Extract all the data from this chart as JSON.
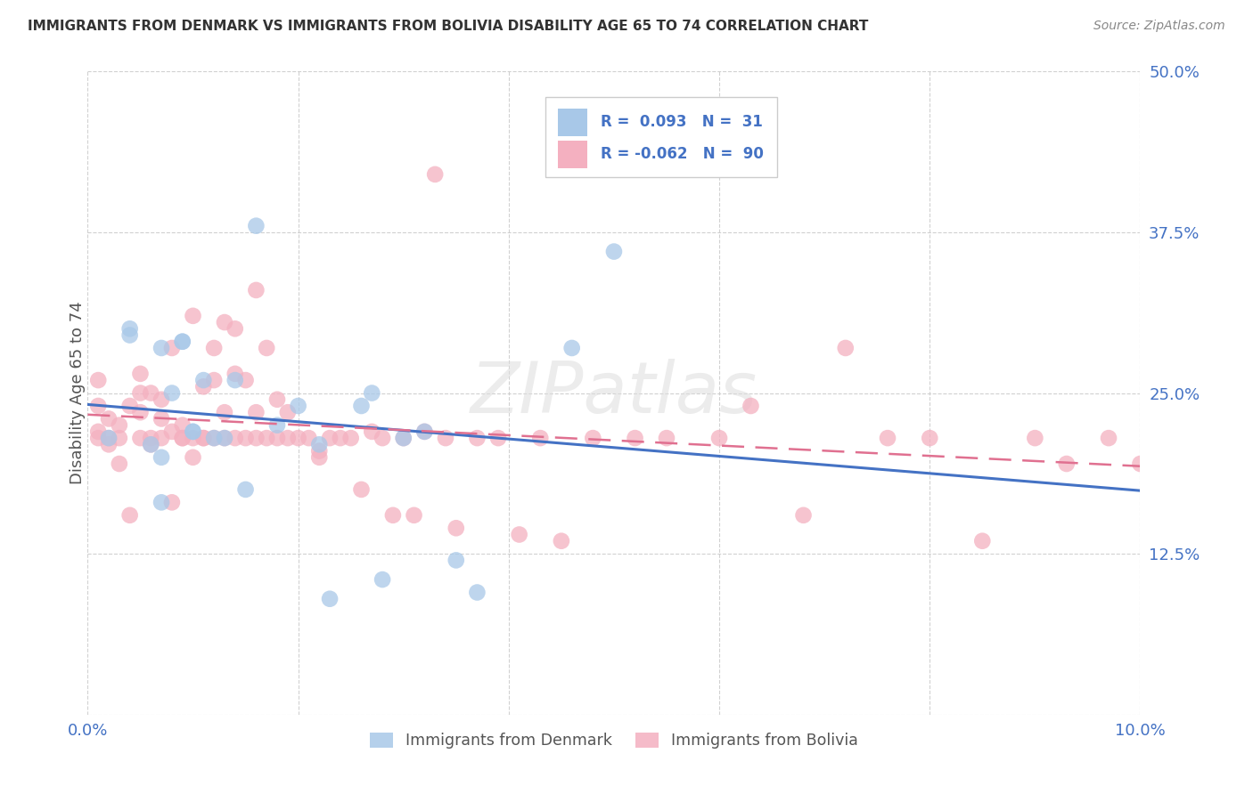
{
  "title": "IMMIGRANTS FROM DENMARK VS IMMIGRANTS FROM BOLIVIA DISABILITY AGE 65 TO 74 CORRELATION CHART",
  "source": "Source: ZipAtlas.com",
  "ylabel": "Disability Age 65 to 74",
  "xlim": [
    0.0,
    0.1
  ],
  "ylim": [
    0.0,
    0.5
  ],
  "color_denmark": "#A8C8E8",
  "color_bolivia": "#F4B0C0",
  "color_line_denmark": "#4472C4",
  "color_line_bolivia": "#E07090",
  "denmark_R": 0.093,
  "denmark_N": 31,
  "bolivia_R": -0.062,
  "bolivia_N": 90,
  "watermark": "ZIPatlas",
  "dk_x": [
    0.002,
    0.004,
    0.004,
    0.006,
    0.007,
    0.007,
    0.007,
    0.008,
    0.009,
    0.009,
    0.01,
    0.01,
    0.011,
    0.012,
    0.013,
    0.014,
    0.015,
    0.016,
    0.018,
    0.02,
    0.022,
    0.023,
    0.026,
    0.027,
    0.028,
    0.03,
    0.032,
    0.035,
    0.037,
    0.046,
    0.05
  ],
  "dk_y": [
    0.215,
    0.295,
    0.3,
    0.21,
    0.285,
    0.2,
    0.165,
    0.25,
    0.29,
    0.29,
    0.22,
    0.22,
    0.26,
    0.215,
    0.215,
    0.26,
    0.175,
    0.38,
    0.225,
    0.24,
    0.21,
    0.09,
    0.24,
    0.25,
    0.105,
    0.215,
    0.22,
    0.12,
    0.095,
    0.285,
    0.36
  ],
  "bo_x": [
    0.001,
    0.001,
    0.001,
    0.001,
    0.002,
    0.002,
    0.002,
    0.003,
    0.003,
    0.003,
    0.004,
    0.004,
    0.005,
    0.005,
    0.005,
    0.005,
    0.006,
    0.006,
    0.006,
    0.007,
    0.007,
    0.007,
    0.008,
    0.008,
    0.008,
    0.009,
    0.009,
    0.009,
    0.01,
    0.01,
    0.01,
    0.011,
    0.011,
    0.011,
    0.012,
    0.012,
    0.012,
    0.013,
    0.013,
    0.013,
    0.014,
    0.014,
    0.014,
    0.015,
    0.015,
    0.016,
    0.016,
    0.016,
    0.017,
    0.017,
    0.018,
    0.018,
    0.019,
    0.019,
    0.02,
    0.021,
    0.022,
    0.022,
    0.023,
    0.024,
    0.025,
    0.026,
    0.027,
    0.028,
    0.029,
    0.03,
    0.031,
    0.032,
    0.033,
    0.034,
    0.035,
    0.037,
    0.039,
    0.041,
    0.043,
    0.045,
    0.048,
    0.052,
    0.055,
    0.06,
    0.063,
    0.068,
    0.072,
    0.076,
    0.08,
    0.085,
    0.09,
    0.093,
    0.097,
    0.1
  ],
  "bo_y": [
    0.215,
    0.22,
    0.24,
    0.26,
    0.21,
    0.215,
    0.23,
    0.195,
    0.215,
    0.225,
    0.155,
    0.24,
    0.215,
    0.235,
    0.25,
    0.265,
    0.21,
    0.215,
    0.25,
    0.215,
    0.245,
    0.23,
    0.165,
    0.22,
    0.285,
    0.215,
    0.215,
    0.225,
    0.2,
    0.215,
    0.31,
    0.215,
    0.215,
    0.255,
    0.215,
    0.26,
    0.285,
    0.215,
    0.235,
    0.305,
    0.215,
    0.265,
    0.3,
    0.215,
    0.26,
    0.215,
    0.235,
    0.33,
    0.215,
    0.285,
    0.215,
    0.245,
    0.215,
    0.235,
    0.215,
    0.215,
    0.2,
    0.205,
    0.215,
    0.215,
    0.215,
    0.175,
    0.22,
    0.215,
    0.155,
    0.215,
    0.155,
    0.22,
    0.42,
    0.215,
    0.145,
    0.215,
    0.215,
    0.14,
    0.215,
    0.135,
    0.215,
    0.215,
    0.215,
    0.215,
    0.24,
    0.155,
    0.285,
    0.215,
    0.215,
    0.135,
    0.215,
    0.195,
    0.215,
    0.195
  ]
}
